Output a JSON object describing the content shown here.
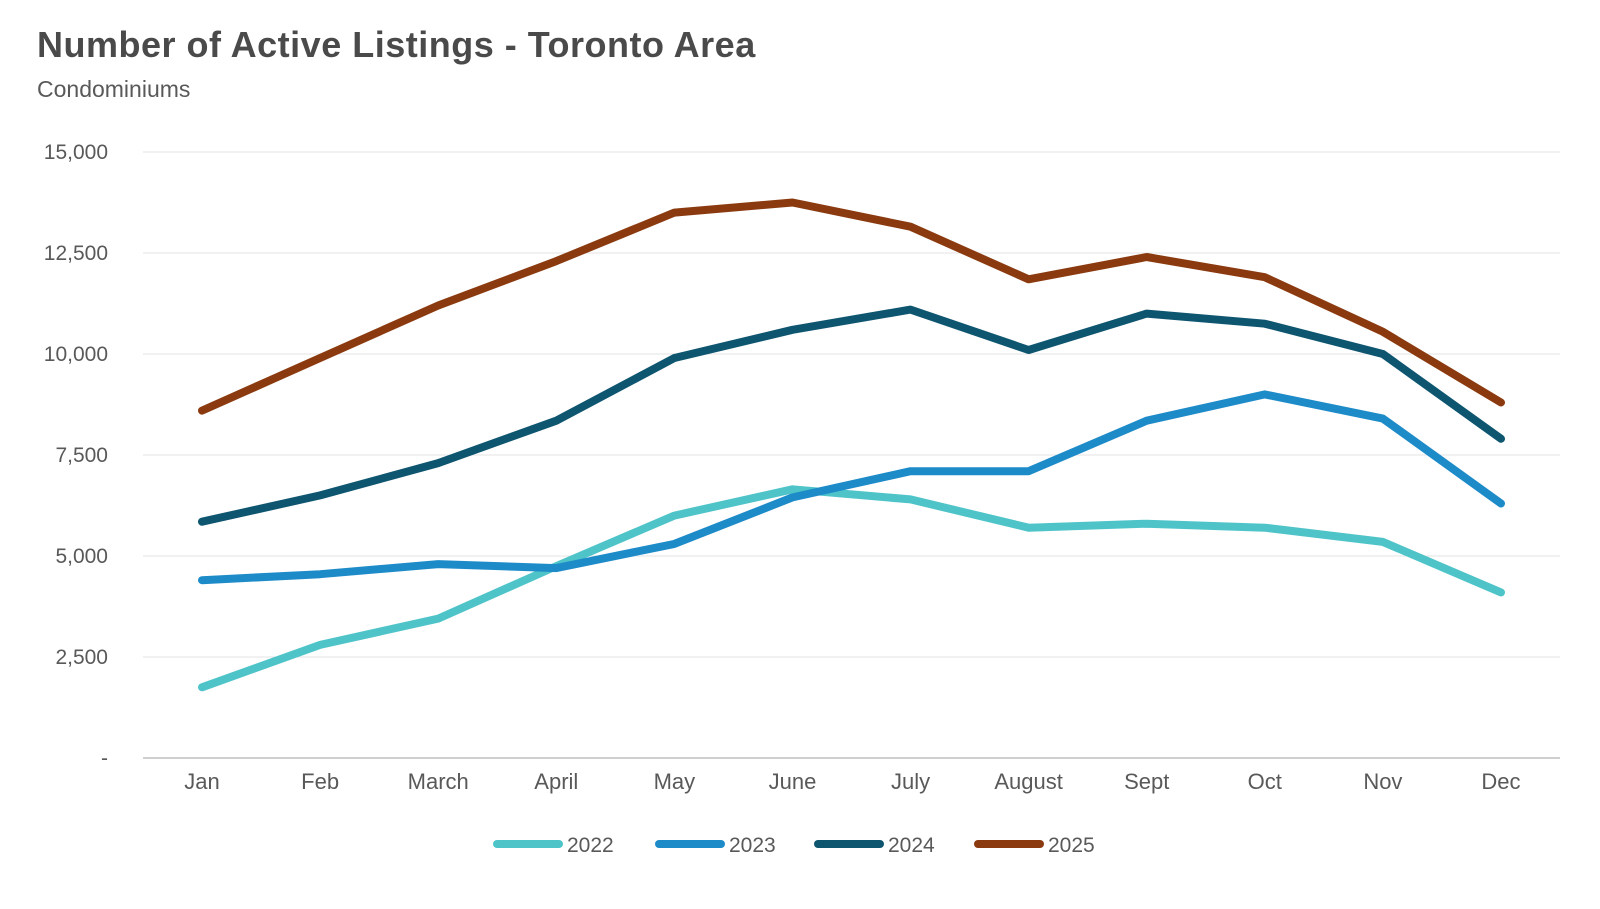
{
  "chart_data": {
    "type": "line",
    "title": "Number of Active Listings - Toronto Area",
    "subtitle": "Condominiums",
    "categories": [
      "Jan",
      "Feb",
      "March",
      "April",
      "May",
      "June",
      "July",
      "August",
      "Sept",
      "Oct",
      "Nov",
      "Dec"
    ],
    "series": [
      {
        "name": "2022",
        "color": "#4EC4C9",
        "values": [
          1750,
          2800,
          3450,
          4750,
          6000,
          6650,
          6400,
          5700,
          5800,
          5700,
          5350,
          4100
        ]
      },
      {
        "name": "2023",
        "color": "#1E8BC9",
        "values": [
          4400,
          4550,
          4800,
          4700,
          5300,
          6450,
          7100,
          7100,
          8350,
          9000,
          8400,
          6300
        ]
      },
      {
        "name": "2024",
        "color": "#0E5570",
        "values": [
          5850,
          6500,
          7300,
          8350,
          9900,
          10600,
          11100,
          10100,
          11000,
          10750,
          10000,
          7900
        ]
      },
      {
        "name": "2025",
        "color": "#8B3A0F",
        "values": [
          8600,
          9900,
          11200,
          12300,
          13500,
          13750,
          13150,
          11850,
          12400,
          11900,
          10550,
          8800
        ]
      }
    ],
    "ylim": [
      0,
      15000
    ],
    "y_ticks": [
      {
        "value": 0,
        "label": "-"
      },
      {
        "value": 2500,
        "label": "2,500"
      },
      {
        "value": 5000,
        "label": "5,000"
      },
      {
        "value": 7500,
        "label": "7,500"
      },
      {
        "value": 10000,
        "label": "10,000"
      },
      {
        "value": 12500,
        "label": "12,500"
      },
      {
        "value": 15000,
        "label": "15,000"
      }
    ],
    "grid": true,
    "legend_position": "bottom",
    "legend_labels": [
      "2022",
      "2023",
      "2024",
      "2025"
    ]
  },
  "colors": {
    "title_text": "#4a4a4a",
    "axis_text": "#595959",
    "gridline": "#e3e3e3",
    "axis_line": "#bfbfbf",
    "background": "#ffffff"
  }
}
